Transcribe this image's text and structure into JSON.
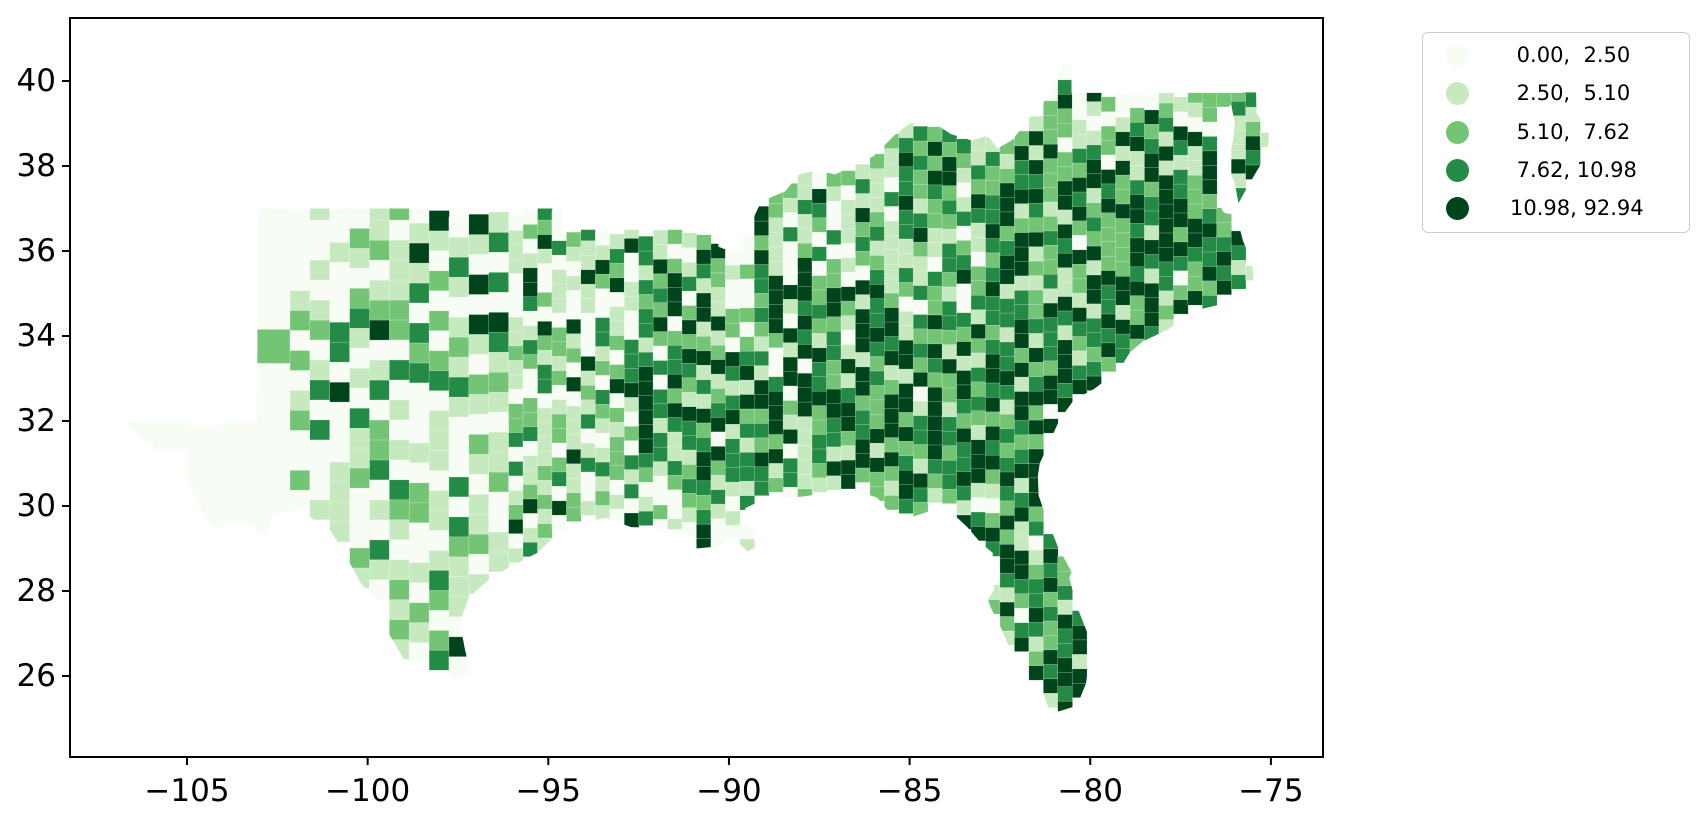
{
  "figure": {
    "background": "#ffffff",
    "type_description": "Choropleth map of county-level values, southeastern United States"
  },
  "axes": {
    "spine_color": "#000000",
    "tick_color": "#000000",
    "x_tick_labels": [
      "−105",
      "−100",
      "−95",
      "−90",
      "−85",
      "−80",
      "−75"
    ],
    "x_tick_values": [
      -105,
      -100,
      -95,
      -90,
      -85,
      -80,
      -75
    ],
    "y_tick_labels": [
      "40",
      "38",
      "36",
      "34",
      "32",
      "30",
      "28",
      "26"
    ],
    "y_tick_values": [
      40,
      38,
      36,
      34,
      32,
      30,
      28,
      26
    ]
  },
  "legend": {
    "border_color": "#cccccc",
    "background": "#ffffff",
    "entries": [
      {
        "label": " 0.00,  2.50",
        "color": "#f7fcf5"
      },
      {
        "label": " 2.50,  5.10",
        "color": "#c7e9c0"
      },
      {
        "label": " 5.10,  7.62",
        "color": "#74c476"
      },
      {
        "label": " 7.62, 10.98",
        "color": "#238b45"
      },
      {
        "label": "10.98, 92.94",
        "color": "#00441b"
      }
    ]
  },
  "chart_data": {
    "type": "heatmap",
    "variant": "choropleth_map",
    "region": "Southeastern United States counties",
    "title": "",
    "xlabel": "",
    "ylabel": "",
    "x_axis_meaning": "longitude (degrees)",
    "y_axis_meaning": "latitude (degrees)",
    "xlim": [
      -108.2,
      -73.5
    ],
    "ylim": [
      24.1,
      41.5
    ],
    "grid": false,
    "legend_position": "upper right, outside axes",
    "color_scheme": "Greens (5 classes, light to dark)",
    "class_colors": [
      "#f7fcf5",
      "#c7e9c0",
      "#74c476",
      "#238b45",
      "#00441b"
    ],
    "class_bins": [
      {
        "min": 0.0,
        "max": 2.5
      },
      {
        "min": 2.5,
        "max": 5.1
      },
      {
        "min": 5.1,
        "max": 7.62
      },
      {
        "min": 7.62,
        "max": 10.98
      },
      {
        "min": 10.98,
        "max": 92.94
      }
    ],
    "county_edge_color": "#ffffff",
    "region_outline_lonlat": [
      [
        -103.0,
        37.0
      ],
      [
        -94.62,
        37.0
      ],
      [
        -94.62,
        36.5
      ],
      [
        -90.32,
        36.5
      ],
      [
        -90.29,
        36.1
      ],
      [
        -89.96,
        35.99
      ],
      [
        -89.7,
        36.0
      ],
      [
        -89.68,
        36.24
      ],
      [
        -89.53,
        36.5
      ],
      [
        -89.41,
        36.62
      ],
      [
        -89.17,
        37.05
      ],
      [
        -88.93,
        37.23
      ],
      [
        -88.45,
        37.4
      ],
      [
        -88.06,
        37.8
      ],
      [
        -87.6,
        37.9
      ],
      [
        -87.06,
        37.8
      ],
      [
        -86.52,
        38.04
      ],
      [
        -86.0,
        38.23
      ],
      [
        -85.41,
        38.73
      ],
      [
        -84.81,
        39.12
      ],
      [
        -84.4,
        39.05
      ],
      [
        -83.85,
        38.75
      ],
      [
        -83.28,
        38.6
      ],
      [
        -82.85,
        38.72
      ],
      [
        -82.57,
        38.41
      ],
      [
        -82.18,
        38.6
      ],
      [
        -81.9,
        38.88
      ],
      [
        -81.74,
        39.1
      ],
      [
        -81.38,
        39.35
      ],
      [
        -80.87,
        40.16
      ],
      [
        -80.52,
        40.64
      ],
      [
        -80.52,
        39.72
      ],
      [
        -75.79,
        39.72
      ],
      [
        -75.41,
        39.8
      ],
      [
        -75.4,
        39.26
      ],
      [
        -75.05,
        38.8
      ],
      [
        -75.08,
        38.45
      ],
      [
        -75.1,
        38.3
      ],
      [
        -75.62,
        37.55
      ],
      [
        -75.9,
        37.12
      ],
      [
        -76.0,
        37.6
      ],
      [
        -76.2,
        38.0
      ],
      [
        -76.05,
        38.6
      ],
      [
        -76.0,
        39.0
      ],
      [
        -76.1,
        39.45
      ],
      [
        -76.4,
        39.2
      ],
      [
        -76.5,
        38.8
      ],
      [
        -76.4,
        38.3
      ],
      [
        -76.3,
        37.9
      ],
      [
        -76.45,
        37.5
      ],
      [
        -76.5,
        37.2
      ],
      [
        -76.3,
        36.9
      ],
      [
        -75.97,
        36.84
      ],
      [
        -75.87,
        36.55
      ],
      [
        -75.77,
        36.23
      ],
      [
        -75.53,
        35.77
      ],
      [
        -75.46,
        35.2
      ],
      [
        -76.0,
        35.0
      ],
      [
        -76.5,
        34.72
      ],
      [
        -77.1,
        34.6
      ],
      [
        -77.85,
        34.15
      ],
      [
        -78.55,
        33.87
      ],
      [
        -78.9,
        33.62
      ],
      [
        -79.2,
        33.2
      ],
      [
        -79.9,
        32.75
      ],
      [
        -80.45,
        32.5
      ],
      [
        -80.85,
        32.03
      ],
      [
        -81.13,
        31.5
      ],
      [
        -81.4,
        31.0
      ],
      [
        -81.45,
        30.71
      ],
      [
        -81.43,
        30.25
      ],
      [
        -81.25,
        29.8
      ],
      [
        -80.9,
        29.05
      ],
      [
        -80.52,
        28.45
      ],
      [
        -80.58,
        28.3
      ],
      [
        -80.35,
        27.6
      ],
      [
        -80.05,
        26.95
      ],
      [
        -80.03,
        26.35
      ],
      [
        -80.12,
        25.82
      ],
      [
        -80.37,
        25.3
      ],
      [
        -80.86,
        25.17
      ],
      [
        -81.1,
        25.13
      ],
      [
        -81.35,
        25.7
      ],
      [
        -81.72,
        25.9
      ],
      [
        -81.87,
        26.45
      ],
      [
        -82.05,
        26.5
      ],
      [
        -82.26,
        26.7
      ],
      [
        -82.45,
        27.1
      ],
      [
        -82.75,
        27.6
      ],
      [
        -82.83,
        27.8
      ],
      [
        -82.66,
        28.03
      ],
      [
        -82.7,
        28.9
      ],
      [
        -83.0,
        29.1
      ],
      [
        -83.4,
        29.5
      ],
      [
        -83.9,
        29.9
      ],
      [
        -84.35,
        30.0
      ],
      [
        -84.38,
        29.9
      ],
      [
        -85.0,
        29.72
      ],
      [
        -85.4,
        29.68
      ],
      [
        -85.9,
        30.2
      ],
      [
        -86.6,
        30.38
      ],
      [
        -87.2,
        30.33
      ],
      [
        -87.5,
        30.28
      ],
      [
        -88.0,
        30.22
      ],
      [
        -88.9,
        30.18
      ],
      [
        -89.3,
        30.05
      ],
      [
        -89.55,
        29.95
      ],
      [
        -89.48,
        29.55
      ],
      [
        -89.0,
        29.15
      ],
      [
        -89.48,
        28.93
      ],
      [
        -89.9,
        29.25
      ],
      [
        -90.3,
        29.05
      ],
      [
        -90.9,
        29.0
      ],
      [
        -91.3,
        29.45
      ],
      [
        -91.9,
        29.45
      ],
      [
        -92.7,
        29.5
      ],
      [
        -93.4,
        29.72
      ],
      [
        -93.9,
        29.65
      ],
      [
        -94.75,
        29.35
      ],
      [
        -95.3,
        28.9
      ],
      [
        -96.1,
        28.55
      ],
      [
        -96.6,
        28.3
      ],
      [
        -97.2,
        27.85
      ],
      [
        -97.45,
        27.25
      ],
      [
        -97.3,
        26.6
      ],
      [
        -97.15,
        26.05
      ],
      [
        -97.65,
        25.95
      ],
      [
        -98.3,
        26.1
      ],
      [
        -99.0,
        26.4
      ],
      [
        -99.45,
        27.05
      ],
      [
        -99.5,
        27.55
      ],
      [
        -100.2,
        28.2
      ],
      [
        -100.65,
        28.9
      ],
      [
        -101.05,
        29.45
      ],
      [
        -101.65,
        29.77
      ],
      [
        -102.35,
        29.88
      ],
      [
        -102.67,
        29.73
      ],
      [
        -102.87,
        29.25
      ],
      [
        -103.1,
        29.0
      ],
      [
        -103.75,
        29.25
      ],
      [
        -104.35,
        29.55
      ],
      [
        -104.7,
        30.05
      ],
      [
        -104.98,
        30.65
      ],
      [
        -105.6,
        31.1
      ],
      [
        -106.25,
        31.55
      ],
      [
        -106.63,
        31.9
      ],
      [
        -106.6,
        32.0
      ],
      [
        -103.06,
        32.0
      ],
      [
        -103.04,
        36.5
      ],
      [
        -103.0,
        37.0
      ]
    ]
  }
}
